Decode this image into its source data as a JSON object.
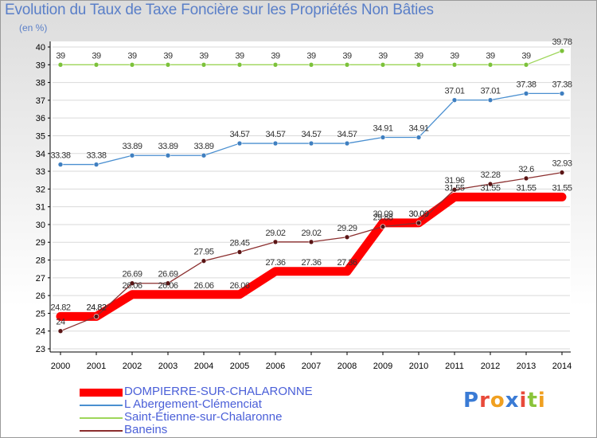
{
  "title": "Evolution du Taux de Taxe Foncière sur les Propriétés Non Bâties",
  "unit": "(en %)",
  "logo": "Proxiti",
  "colors": {
    "title": "#5a7fc8",
    "legend_text": "#4a5fd8"
  },
  "chart_data": {
    "type": "line",
    "title": "Evolution du Taux de Taxe Foncière sur les Propriétés Non Bâties",
    "ylabel": "(en %)",
    "xlabel": "",
    "ylim": [
      23,
      40
    ],
    "yticks": [
      23,
      24,
      25,
      26,
      27,
      28,
      29,
      30,
      31,
      32,
      33,
      34,
      35,
      36,
      37,
      38,
      39,
      40
    ],
    "x": [
      "2000",
      "2001",
      "2002",
      "2003",
      "2004",
      "2005",
      "2006",
      "2007",
      "2008",
      "2009",
      "2010",
      "2011",
      "2012",
      "2013",
      "2014"
    ],
    "series": [
      {
        "name": "DOMPIERRE-SUR-CHALARONNE",
        "color": "#ff0000",
        "thick": true,
        "values": [
          24.82,
          24.82,
          26.06,
          26.06,
          26.06,
          26.06,
          27.36,
          27.36,
          27.36,
          30.09,
          30.09,
          31.55,
          31.55,
          31.55,
          31.55
        ],
        "labels": [
          "24.82",
          "24.82",
          "26.06",
          "26.06",
          "26.06",
          "26.06",
          "27.36",
          "27.36",
          "27.36",
          "30.09",
          "30.09",
          "31.55",
          "31.55",
          "31.55",
          "31.55"
        ]
      },
      {
        "name": "L  Abergement-Clémenciat",
        "color": "#4a8fd0",
        "marker": "#3f7fc0",
        "values": [
          33.38,
          33.38,
          33.89,
          33.89,
          33.89,
          34.57,
          34.57,
          34.57,
          34.57,
          34.91,
          34.91,
          37.01,
          37.01,
          37.38,
          37.38
        ],
        "labels": [
          "33.38",
          "33.38",
          "33.89",
          "33.89",
          "33.89",
          "34.57",
          "34.57",
          "34.57",
          "34.57",
          "34.91",
          "34.91",
          "37.01",
          "37.01",
          "37.38",
          "37.38"
        ]
      },
      {
        "name": "Saint-Étienne-sur-Chalaronne",
        "color": "#9ed65a",
        "marker": "#7cc23a",
        "values": [
          39,
          39,
          39,
          39,
          39,
          39,
          39,
          39,
          39,
          39,
          39,
          39,
          39,
          39,
          39.78
        ],
        "labels": [
          "39",
          "39",
          "39",
          "39",
          "39",
          "39",
          "39",
          "39",
          "39",
          "39",
          "39",
          "39",
          "39",
          "39",
          "39.78"
        ]
      },
      {
        "name": "Baneins",
        "color": "#8b2e2e",
        "marker": "#5a1414",
        "values": [
          24,
          24.82,
          26.69,
          26.69,
          27.95,
          28.45,
          29.02,
          29.02,
          29.29,
          29.88,
          30.09,
          31.96,
          32.28,
          32.6,
          32.93
        ],
        "labels": [
          "24",
          "24.82",
          "26.69",
          "26.69",
          "27.95",
          "28.45",
          "29.02",
          "29.02",
          "29.29",
          "29.88",
          "30.09",
          "31.96",
          "32.28",
          "32.6",
          "32.93"
        ]
      }
    ],
    "legend_position": "bottom-left"
  }
}
